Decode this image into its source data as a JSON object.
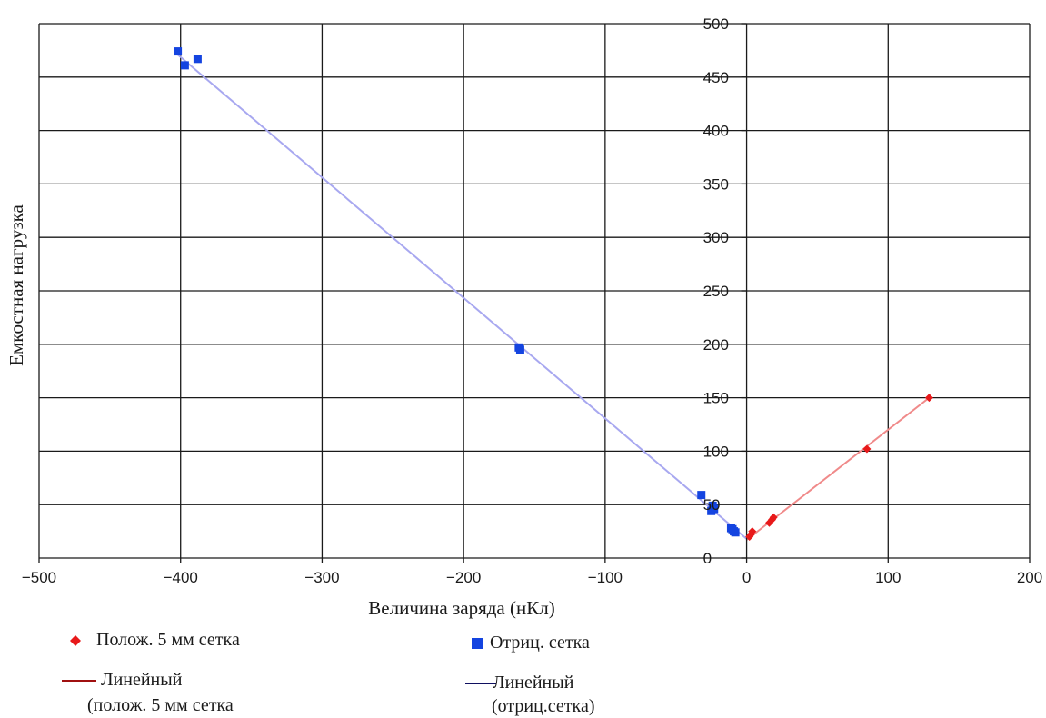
{
  "chart_data": {
    "type": "scatter",
    "xlabel": "Величина заряда (нКл)",
    "ylabel": "Емкостная нагрузка",
    "xlim": [
      -500,
      200
    ],
    "ylim": [
      0,
      500
    ],
    "x_ticks": [
      -500,
      -400,
      -300,
      -200,
      -100,
      0,
      100,
      200
    ],
    "x_tick_labels": [
      "−500",
      "−400",
      "−300",
      "−200",
      "−100",
      "0",
      "100",
      "200"
    ],
    "y_ticks": [
      0,
      50,
      100,
      150,
      200,
      250,
      300,
      350,
      400,
      450,
      500
    ],
    "y_tick_labels": [
      "0",
      "50",
      "100",
      "150",
      "200",
      "250",
      "300",
      "350",
      "400",
      "450",
      "500"
    ],
    "grid": true,
    "legend_position": "bottom",
    "series": [
      {
        "name": "Полож. 5 мм сетка",
        "marker": "diamond",
        "color": "#e8191a",
        "points": [
          [
            2,
            20
          ],
          [
            4,
            25
          ],
          [
            3,
            22
          ],
          [
            16,
            33
          ],
          [
            18,
            36
          ],
          [
            19,
            38
          ],
          [
            85,
            102
          ],
          [
            129,
            150
          ]
        ]
      },
      {
        "name": "Отриц. сетка",
        "marker": "square",
        "color": "#1444e0",
        "points": [
          [
            -402,
            474
          ],
          [
            -397,
            461
          ],
          [
            -388,
            467
          ],
          [
            -161,
            197
          ],
          [
            -160,
            195
          ],
          [
            -32,
            59
          ],
          [
            -24,
            49
          ],
          [
            -25,
            44
          ],
          [
            -23,
            46
          ],
          [
            -10,
            27
          ],
          [
            -9,
            25
          ],
          [
            -8,
            24
          ],
          [
            -11,
            28
          ]
        ]
      }
    ],
    "trendlines": [
      {
        "name": "Линейный\n(полож. 5 мм сетка",
        "color": "#f08a8a",
        "legend_color": "#a01010",
        "x": [
          0,
          129
        ],
        "y": [
          17,
          150
        ]
      },
      {
        "name": "Линейный\n(отриц.сетка)",
        "color": "#a8a8f0",
        "legend_color": "#101060",
        "x": [
          -402,
          0
        ],
        "y": [
          471,
          18
        ]
      }
    ]
  },
  "legend": {
    "items": [
      {
        "key": "pos_points",
        "label": "Полож. 5 мм сетка",
        "marker": "diamond",
        "color": "#e8191a"
      },
      {
        "key": "neg_points",
        "label": "Отриц. сетка",
        "marker": "square",
        "color": "#1444e0"
      },
      {
        "key": "pos_line",
        "label_line1": "Линейный",
        "label_line2": "(полож. 5 мм сетка",
        "marker": "line",
        "color": "#a01010"
      },
      {
        "key": "neg_line",
        "label_line1": "Линейный",
        "label_line2": "(отриц.сетка)",
        "marker": "line",
        "color": "#101060"
      }
    ]
  }
}
